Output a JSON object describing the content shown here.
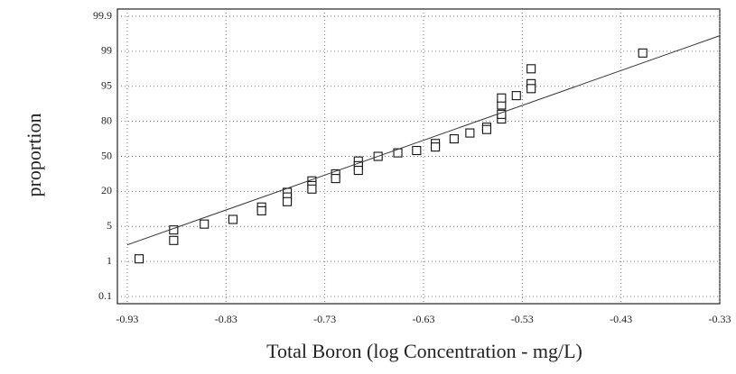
{
  "chart_data": {
    "type": "scatter",
    "y_scale": "probability",
    "x_label": "Total Boron (log Concentration - mg/L)",
    "y_label": "proportion",
    "xlim": [
      -0.94,
      -0.33
    ],
    "ylim": [
      0.1,
      99.9
    ],
    "xticks": [
      -0.93,
      -0.83,
      -0.73,
      -0.63,
      -0.53,
      -0.43,
      -0.33
    ],
    "yticks": [
      0.1,
      1,
      5,
      20,
      50,
      80,
      95,
      99,
      99.9
    ],
    "grid": true,
    "series": [
      {
        "name": "observations",
        "color": "#111111",
        "marker": "square",
        "x": [
          -0.918,
          -0.883,
          -0.883,
          -0.852,
          -0.823,
          -0.794,
          -0.794,
          -0.768,
          -0.768,
          -0.768,
          -0.743,
          -0.743,
          -0.743,
          -0.719,
          -0.719,
          -0.696,
          -0.696,
          -0.696,
          -0.676,
          -0.656,
          -0.637,
          -0.618,
          -0.618,
          -0.599,
          -0.583,
          -0.566,
          -0.566,
          -0.551,
          -0.551,
          -0.551,
          -0.551,
          -0.536,
          -0.521,
          -0.521,
          -0.521,
          -0.408
        ],
        "values": [
          1.3,
          4.6,
          3.4,
          6,
          8,
          13.3,
          11.7,
          19.6,
          17.6,
          15.6,
          29,
          25,
          22,
          35,
          31,
          46,
          42,
          38,
          50,
          53,
          55,
          61,
          58,
          65,
          70,
          75,
          73,
          81,
          83,
          87,
          90,
          91,
          97,
          95.3,
          94,
          98.8
        ]
      },
      {
        "name": "fit",
        "color": "#333333",
        "marker": "line",
        "x": [
          -0.93,
          -0.33
        ],
        "values": [
          2.9,
          99.4
        ]
      }
    ]
  }
}
